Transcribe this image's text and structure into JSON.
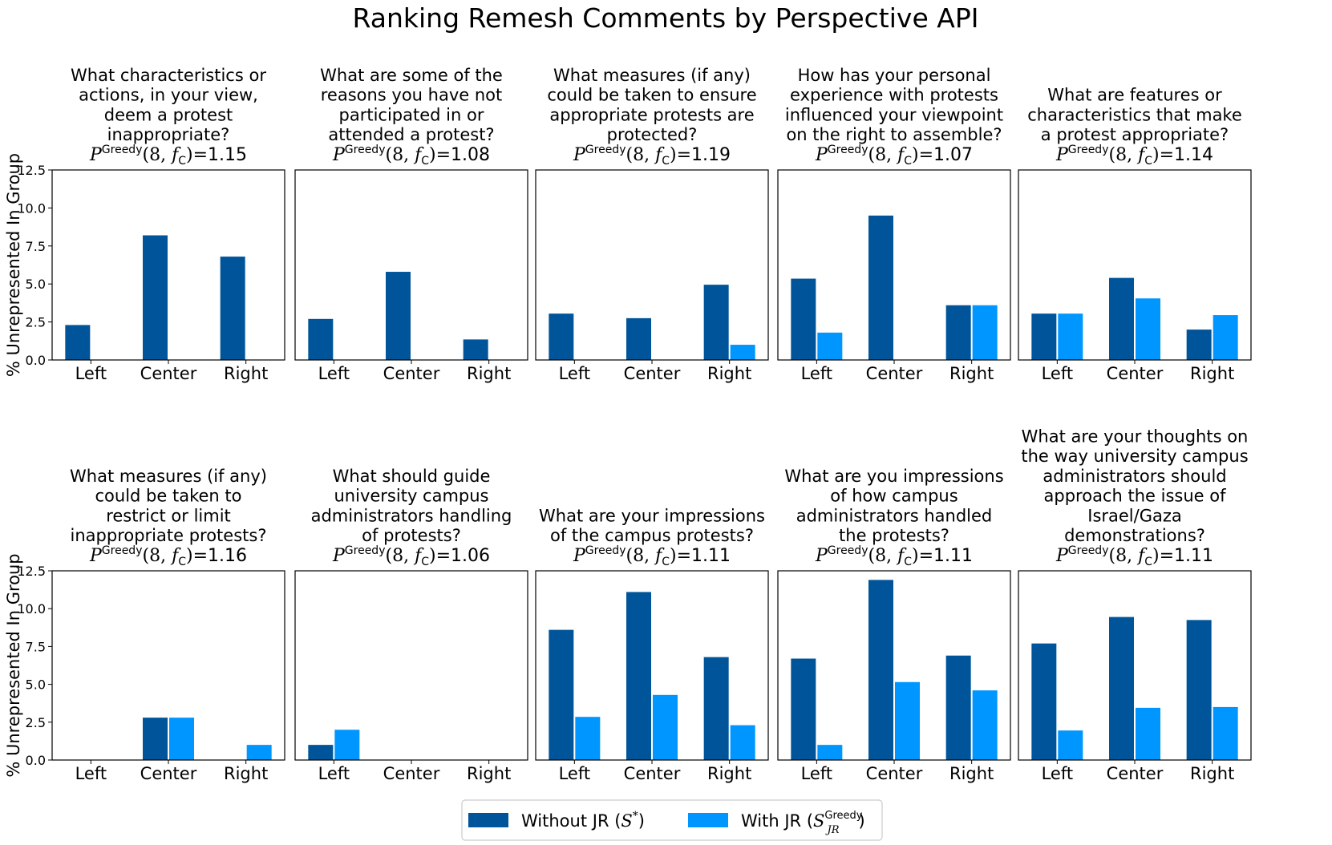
{
  "figure": {
    "title": "Ranking Remesh Comments by Perspective API",
    "ylabel": "% Unrepresented In Group",
    "metric_symbol": "P",
    "metric_superscript": "Greedy",
    "metric_args_open": "(8, ",
    "metric_f": "f",
    "metric_f_sub": "C",
    "metric_args_close": ")=",
    "legend": {
      "placement": "bottom-center",
      "items": [
        {
          "label_pre": "Without JR (",
          "label_sym": "S",
          "label_sup": "*",
          "label_post": ")",
          "color": "#00559a"
        },
        {
          "label_pre": "With JR (",
          "label_sym": "S",
          "label_sup": "Greedy",
          "label_sub": "JR",
          "label_post": ")",
          "color": "#0096ff"
        }
      ]
    }
  },
  "chart_data": [
    {
      "type": "bar",
      "title_lines": [
        "What characteristics or",
        "actions, in your view,",
        "deem a protest",
        "inappropriate?"
      ],
      "metric_value": "1.15",
      "categories": [
        "Left",
        "Center",
        "Right"
      ],
      "series": [
        {
          "name": "Without JR",
          "values": [
            2.3,
            8.2,
            6.8
          ]
        },
        {
          "name": "With JR",
          "values": [
            0,
            0,
            0
          ]
        }
      ],
      "ylim": [
        0,
        12.5
      ],
      "yticks": [
        "0.0",
        "2.5",
        "5.0",
        "7.5",
        "10.0",
        "12.5"
      ]
    },
    {
      "type": "bar",
      "title_lines": [
        "What are some of the",
        "reasons you have not",
        "participated in or",
        "attended a protest?"
      ],
      "metric_value": "1.08",
      "categories": [
        "Left",
        "Center",
        "Right"
      ],
      "series": [
        {
          "name": "Without JR",
          "values": [
            2.7,
            5.8,
            1.35
          ]
        },
        {
          "name": "With JR",
          "values": [
            0,
            0,
            0
          ]
        }
      ],
      "ylim": [
        0,
        12.5
      ],
      "yticks": [
        "0.0",
        "2.5",
        "5.0",
        "7.5",
        "10.0",
        "12.5"
      ]
    },
    {
      "type": "bar",
      "title_lines": [
        "What measures (if any)",
        "could be taken to ensure",
        "appropriate protests are",
        "protected?"
      ],
      "metric_value": "1.19",
      "categories": [
        "Left",
        "Center",
        "Right"
      ],
      "series": [
        {
          "name": "Without JR",
          "values": [
            3.05,
            2.75,
            4.95
          ]
        },
        {
          "name": "With JR",
          "values": [
            0,
            0,
            1.0
          ]
        }
      ],
      "ylim": [
        0,
        12.5
      ],
      "yticks": [
        "0.0",
        "2.5",
        "5.0",
        "7.5",
        "10.0",
        "12.5"
      ]
    },
    {
      "type": "bar",
      "title_lines": [
        "How has your personal",
        "experience with protests",
        "influenced your viewpoint",
        "on the right to assemble?"
      ],
      "metric_value": "1.07",
      "categories": [
        "Left",
        "Center",
        "Right"
      ],
      "series": [
        {
          "name": "Without JR",
          "values": [
            5.35,
            9.5,
            3.6
          ]
        },
        {
          "name": "With JR",
          "values": [
            1.8,
            0,
            3.6
          ]
        }
      ],
      "ylim": [
        0,
        12.5
      ],
      "yticks": [
        "0.0",
        "2.5",
        "5.0",
        "7.5",
        "10.0",
        "12.5"
      ]
    },
    {
      "type": "bar",
      "title_lines": [
        "What are features or",
        "characteristics that make",
        "a protest appropriate?"
      ],
      "metric_value": "1.14",
      "categories": [
        "Left",
        "Center",
        "Right"
      ],
      "series": [
        {
          "name": "Without JR",
          "values": [
            3.05,
            5.4,
            2.0
          ]
        },
        {
          "name": "With JR",
          "values": [
            3.05,
            4.05,
            2.95
          ]
        }
      ],
      "ylim": [
        0,
        12.5
      ],
      "yticks": [
        "0.0",
        "2.5",
        "5.0",
        "7.5",
        "10.0",
        "12.5"
      ]
    },
    {
      "type": "bar",
      "title_lines": [
        "What measures (if any)",
        "could be taken to",
        "restrict or limit",
        "inappropriate protests?"
      ],
      "metric_value": "1.16",
      "categories": [
        "Left",
        "Center",
        "Right"
      ],
      "series": [
        {
          "name": "Without JR",
          "values": [
            0,
            2.8,
            0
          ]
        },
        {
          "name": "With JR",
          "values": [
            0,
            2.8,
            1.0
          ]
        }
      ],
      "ylim": [
        0,
        12.5
      ],
      "yticks": [
        "0.0",
        "2.5",
        "5.0",
        "7.5",
        "10.0",
        "12.5"
      ]
    },
    {
      "type": "bar",
      "title_lines": [
        "What should guide",
        "university campus",
        "administrators handling",
        "of protests?"
      ],
      "metric_value": "1.06",
      "categories": [
        "Left",
        "Center",
        "Right"
      ],
      "series": [
        {
          "name": "Without JR",
          "values": [
            1.0,
            0,
            0
          ]
        },
        {
          "name": "With JR",
          "values": [
            2.0,
            0,
            0
          ]
        }
      ],
      "ylim": [
        0,
        12.5
      ],
      "yticks": [
        "0.0",
        "2.5",
        "5.0",
        "7.5",
        "10.0",
        "12.5"
      ]
    },
    {
      "type": "bar",
      "title_lines": [
        "What are your impressions",
        "of the campus protests?"
      ],
      "metric_value": "1.11",
      "categories": [
        "Left",
        "Center",
        "Right"
      ],
      "series": [
        {
          "name": "Without JR",
          "values": [
            8.6,
            11.1,
            6.8
          ]
        },
        {
          "name": "With JR",
          "values": [
            2.85,
            4.3,
            2.3
          ]
        }
      ],
      "ylim": [
        0,
        12.5
      ],
      "yticks": [
        "0.0",
        "2.5",
        "5.0",
        "7.5",
        "10.0",
        "12.5"
      ]
    },
    {
      "type": "bar",
      "title_lines": [
        "What are you impressions",
        "of how campus",
        "administrators handled",
        "the protests?"
      ],
      "metric_value": "1.11",
      "categories": [
        "Left",
        "Center",
        "Right"
      ],
      "series": [
        {
          "name": "Without JR",
          "values": [
            6.7,
            11.9,
            6.9
          ]
        },
        {
          "name": "With JR",
          "values": [
            1.0,
            5.15,
            4.6
          ]
        }
      ],
      "ylim": [
        0,
        12.5
      ],
      "yticks": [
        "0.0",
        "2.5",
        "5.0",
        "7.5",
        "10.0",
        "12.5"
      ]
    },
    {
      "type": "bar",
      "title_lines": [
        "What are your thoughts on",
        "the way university campus",
        "administrators should",
        "approach the issue of",
        "Israel/Gaza",
        "demonstrations?"
      ],
      "metric_value": "1.11",
      "categories": [
        "Left",
        "Center",
        "Right"
      ],
      "series": [
        {
          "name": "Without JR",
          "values": [
            7.7,
            9.45,
            9.25
          ]
        },
        {
          "name": "With JR",
          "values": [
            1.95,
            3.45,
            3.5
          ]
        }
      ],
      "ylim": [
        0,
        12.5
      ],
      "yticks": [
        "0.0",
        "2.5",
        "5.0",
        "7.5",
        "10.0",
        "12.5"
      ]
    }
  ]
}
